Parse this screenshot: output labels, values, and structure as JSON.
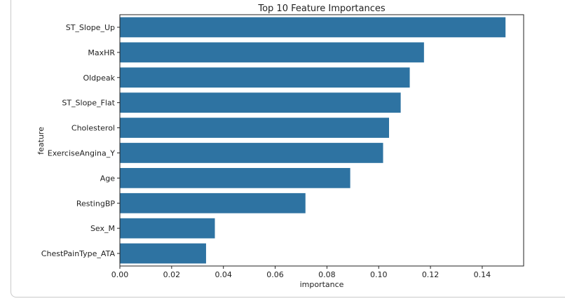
{
  "chart_data": {
    "type": "bar",
    "orientation": "horizontal",
    "title": "Top 10 Feature Importances",
    "xlabel": "importance",
    "ylabel": "feature",
    "categories": [
      "ST_Slope_Up",
      "MaxHR",
      "Oldpeak",
      "ST_Slope_Flat",
      "Cholesterol",
      "ExerciseAngina_Y",
      "Age",
      "RestingBP",
      "Sex_M",
      "ChestPainType_ATA"
    ],
    "values": [
      0.149,
      0.1175,
      0.112,
      0.1085,
      0.104,
      0.1017,
      0.089,
      0.0717,
      0.0367,
      0.0333
    ],
    "xlim": [
      0,
      0.156
    ],
    "xticks": [
      "0.00",
      "0.02",
      "0.04",
      "0.06",
      "0.08",
      "0.10",
      "0.12",
      "0.14"
    ],
    "bar_color": "#2e73a2",
    "grid": false,
    "legend": "none"
  }
}
